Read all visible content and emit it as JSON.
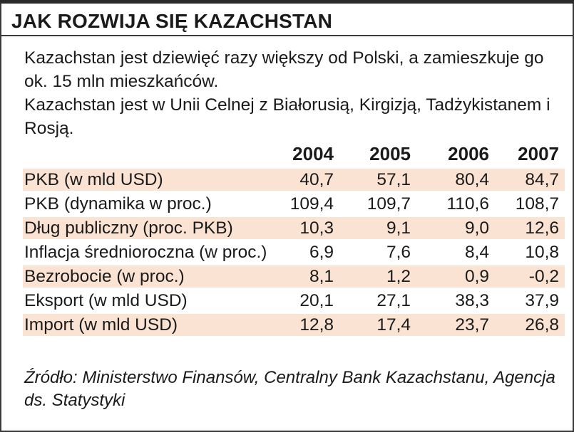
{
  "header": {
    "title": "JAK ROZWIJA SIĘ KAZACHSTAN"
  },
  "intro": {
    "line1": "Kazachstan jest dziewięć razy większy od Polski, a zamieszkuje go ok. 15 mln mieszkańców.",
    "line2": "Kazachstan jest w Unii Celnej z Białorusią, Kirgizją, Tadżykistanem i Rosją."
  },
  "chart_data": {
    "type": "table",
    "title": "JAK ROZWIJA SIĘ KAZACHSTAN",
    "columns": [
      "2004",
      "2005",
      "2006",
      "2007"
    ],
    "rows": [
      {
        "label": "PKB (w mld USD)",
        "values": [
          "40,7",
          "57,1",
          "80,4",
          "84,7"
        ]
      },
      {
        "label": "PKB (dynamika w proc.)",
        "values": [
          "109,4",
          "109,7",
          "110,6",
          "108,7"
        ]
      },
      {
        "label": "Dług publiczny (proc. PKB)",
        "values": [
          "10,3",
          "9,1",
          "9,0",
          "12,6"
        ]
      },
      {
        "label": "Inflacja średnioroczna (w proc.)",
        "values": [
          "6,9",
          "7,6",
          "8,4",
          "10,8"
        ]
      },
      {
        "label": "Bezrobocie (w proc.)",
        "values": [
          "8,1",
          "1,2",
          "0,9",
          "-0,2"
        ]
      },
      {
        "label": "Eksport (w mld USD)",
        "values": [
          "20,1",
          "27,1",
          "38,3",
          "37,9"
        ]
      },
      {
        "label": "Import (w mld USD)",
        "values": [
          "12,8",
          "17,4",
          "23,7",
          "26,8"
        ]
      }
    ],
    "row_shading_color": "#fbe3d3"
  },
  "source": {
    "text": "Źródło: Ministerstwo Finansów, Centralny Bank Kazachstanu, Agencja ds. Statystyki"
  }
}
